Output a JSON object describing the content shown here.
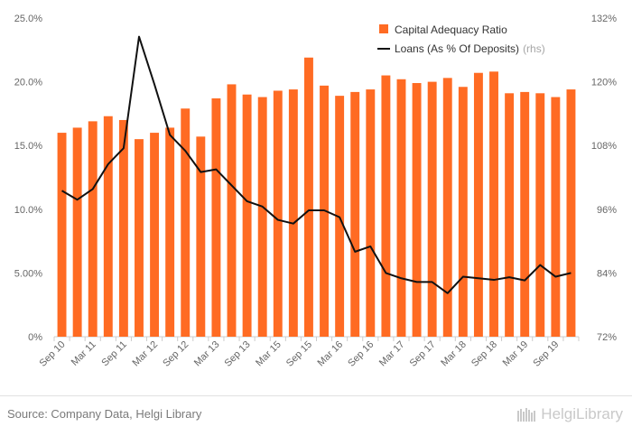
{
  "chart_data": {
    "type": "bar",
    "bar_color": "#ff6b23",
    "line_color": "#111111",
    "legend_position": "top-right",
    "grid": false,
    "categories": [
      "Sep 10",
      "Dec 10",
      "Mar 11",
      "Jun 11",
      "Sep 11",
      "Dec 11",
      "Mar 12",
      "Jun 12",
      "Sep 12",
      "Dec 12",
      "Mar 13",
      "Jun 13",
      "Sep 13",
      "Dec 13",
      "Mar 15",
      "Jun 15",
      "Sep 15",
      "Dec 15",
      "Mar 16",
      "Jun 16",
      "Sep 16",
      "Dec 16",
      "Mar 17",
      "Jun 17",
      "Sep 17",
      "Dec 17",
      "Mar 18",
      "Jun 18",
      "Sep 18",
      "Dec 18",
      "Mar 19",
      "Jun 19",
      "Sep 19",
      "Dec 19"
    ],
    "x_tick_labels": [
      "Sep 10",
      "",
      "Mar 11",
      "",
      "Sep 11",
      "",
      "Mar 12",
      "",
      "Sep 12",
      "",
      "Mar 13",
      "",
      "Sep 13",
      "",
      "Mar 15",
      "",
      "Sep 15",
      "",
      "Mar 16",
      "",
      "Sep 16",
      "",
      "Mar 17",
      "",
      "Sep 17",
      "",
      "Mar 18",
      "",
      "Sep 18",
      "",
      "Mar 19",
      "",
      "Sep 19",
      ""
    ],
    "series": [
      {
        "name": "Capital Adequacy Ratio",
        "type": "bar",
        "axis": "left",
        "values": [
          16.0,
          16.4,
          16.9,
          17.3,
          17.0,
          15.5,
          16.0,
          16.4,
          17.9,
          15.7,
          18.7,
          19.8,
          19.0,
          18.8,
          19.3,
          19.4,
          21.9,
          19.7,
          18.9,
          19.2,
          19.4,
          20.5,
          20.2,
          19.9,
          20.0,
          20.3,
          19.6,
          20.7,
          20.8,
          19.1,
          19.2,
          19.1,
          18.8,
          19.4
        ]
      },
      {
        "name": "Loans (As % Of Deposits)",
        "name_suffix": "(rhs)",
        "type": "line",
        "axis": "right",
        "values": [
          99.5,
          97.8,
          99.8,
          104.5,
          107.5,
          128.5,
          119.5,
          110.0,
          107.0,
          103.0,
          103.5,
          100.5,
          97.5,
          96.5,
          94.0,
          93.3,
          95.8,
          95.8,
          94.5,
          88.0,
          89.0,
          84.0,
          83.0,
          82.3,
          82.3,
          80.2,
          83.3,
          83.0,
          82.7,
          83.2,
          82.6,
          85.5,
          83.3,
          84.0
        ]
      }
    ],
    "left_axis": {
      "min": 0,
      "max": 25,
      "ticks": [
        "0%",
        "5.00%",
        "10.0%",
        "15.0%",
        "20.0%",
        "25.0%"
      ]
    },
    "right_axis": {
      "min": 72,
      "max": 132,
      "ticks": [
        "72%",
        "84%",
        "96%",
        "108%",
        "120%",
        "132%"
      ]
    }
  },
  "footer": {
    "source": "Source: Company Data, Helgi Library",
    "brand": "HelgiLibrary"
  }
}
